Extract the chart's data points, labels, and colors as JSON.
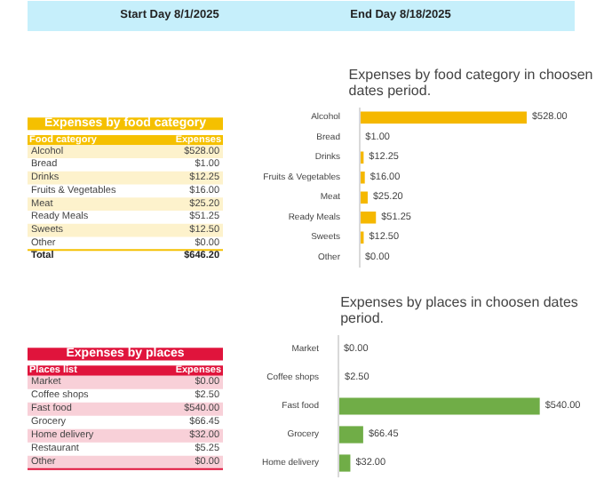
{
  "chart_data": [
    {
      "type": "other",
      "annotations": [
        "Start Day 8/1/2025",
        "End Day 8/18/2025"
      ],
      "color": "#c6effb"
    },
    {
      "type": "other",
      "title": "Expenses by food category",
      "color": "#f5c000",
      "annotations": [
        "Food category",
        "Expenses",
        "Total",
        "$646.20"
      ],
      "categories": [
        "Alcohol",
        "Bread",
        "Drinks",
        "Fruits & Vegetables",
        "Meat",
        "Ready Meals",
        "Sweets",
        "Other"
      ],
      "value_labels": [
        "$528.00",
        "$1.00",
        "$12.25",
        "$16.00",
        "$25.20",
        "$51.25",
        "$12.50",
        "$0.00"
      ]
    },
    {
      "type": "bar",
      "orientation": "horizontal",
      "title": "Expenses by food category in choosen dates period.",
      "color": "#f5b800",
      "categories": [
        "Alcohol",
        "Bread",
        "Drinks",
        "Fruits & Vegetables",
        "Meat",
        "Ready Meals",
        "Sweets",
        "Other"
      ],
      "values": [
        528.0,
        1.0,
        12.25,
        16.0,
        25.2,
        51.25,
        12.5,
        0.0
      ],
      "value_labels": [
        "$528.00",
        "$1.00",
        "$12.25",
        "$16.00",
        "$25.20",
        "$51.25",
        "$12.50",
        "$0.00"
      ]
    },
    {
      "type": "other",
      "title": "Expenses by places",
      "color": "#e0143c",
      "annotations": [
        "Places list",
        "Expenses"
      ],
      "categories": [
        "Market",
        "Coffee shops",
        "Fast food",
        "Grocery",
        "Home delivery",
        "Restaurant",
        "Other"
      ],
      "value_labels": [
        "$0.00",
        "$2.50",
        "$540.00",
        "$66.45",
        "$32.00",
        "$5.25",
        "$0.00"
      ]
    },
    {
      "type": "bar",
      "orientation": "horizontal",
      "title": "Expenses by places in choosen dates period.",
      "color": "#70ad47",
      "categories": [
        "Market",
        "Coffee shops",
        "Fast food",
        "Grocery",
        "Home delivery"
      ],
      "values": [
        0.0,
        2.5,
        540.0,
        66.45,
        32.0
      ],
      "value_labels": [
        "$0.00",
        "$2.50",
        "$540.00",
        "$66.45",
        "$32.00"
      ]
    }
  ]
}
